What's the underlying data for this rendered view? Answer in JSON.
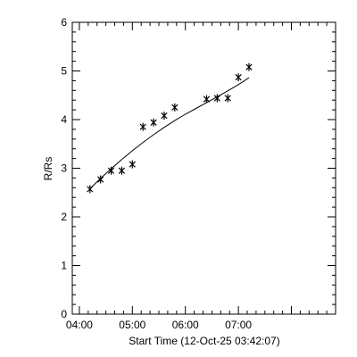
{
  "chart_data": {
    "type": "scatter",
    "title": "",
    "xlabel": "Start Time (12-Oct-25 03:42:07)",
    "ylabel": "R/Rs",
    "xlim": [
      "03:52",
      "08:50"
    ],
    "ylim": [
      0,
      6
    ],
    "grid": false,
    "x_ticks": [
      "04:00",
      "05:00",
      "06:00",
      "07:00"
    ],
    "y_ticks": [
      0,
      1,
      2,
      3,
      4,
      5,
      6
    ],
    "series": [
      {
        "marker": "asterisk",
        "x": [
          "04:12",
          "04:24",
          "04:36",
          "04:48",
          "05:00",
          "05:12",
          "05:24",
          "05:36",
          "05:48",
          "06:24",
          "06:36",
          "06:48",
          "07:00",
          "07:12"
        ],
        "y": [
          2.57,
          2.77,
          2.95,
          2.95,
          3.08,
          3.85,
          3.94,
          4.08,
          4.25,
          4.42,
          4.44,
          4.44,
          4.87,
          5.08
        ]
      },
      {
        "style": "line",
        "x": [
          "04:12",
          "04:24",
          "04:36",
          "04:48",
          "05:00",
          "05:12",
          "05:24",
          "05:36",
          "05:48",
          "06:00",
          "06:12",
          "06:24",
          "06:36",
          "06:48",
          "07:00",
          "07:12"
        ],
        "y": [
          2.58,
          2.79,
          2.99,
          3.18,
          3.36,
          3.53,
          3.69,
          3.84,
          3.98,
          4.11,
          4.23,
          4.35,
          4.47,
          4.59,
          4.72,
          4.86
        ]
      }
    ]
  }
}
